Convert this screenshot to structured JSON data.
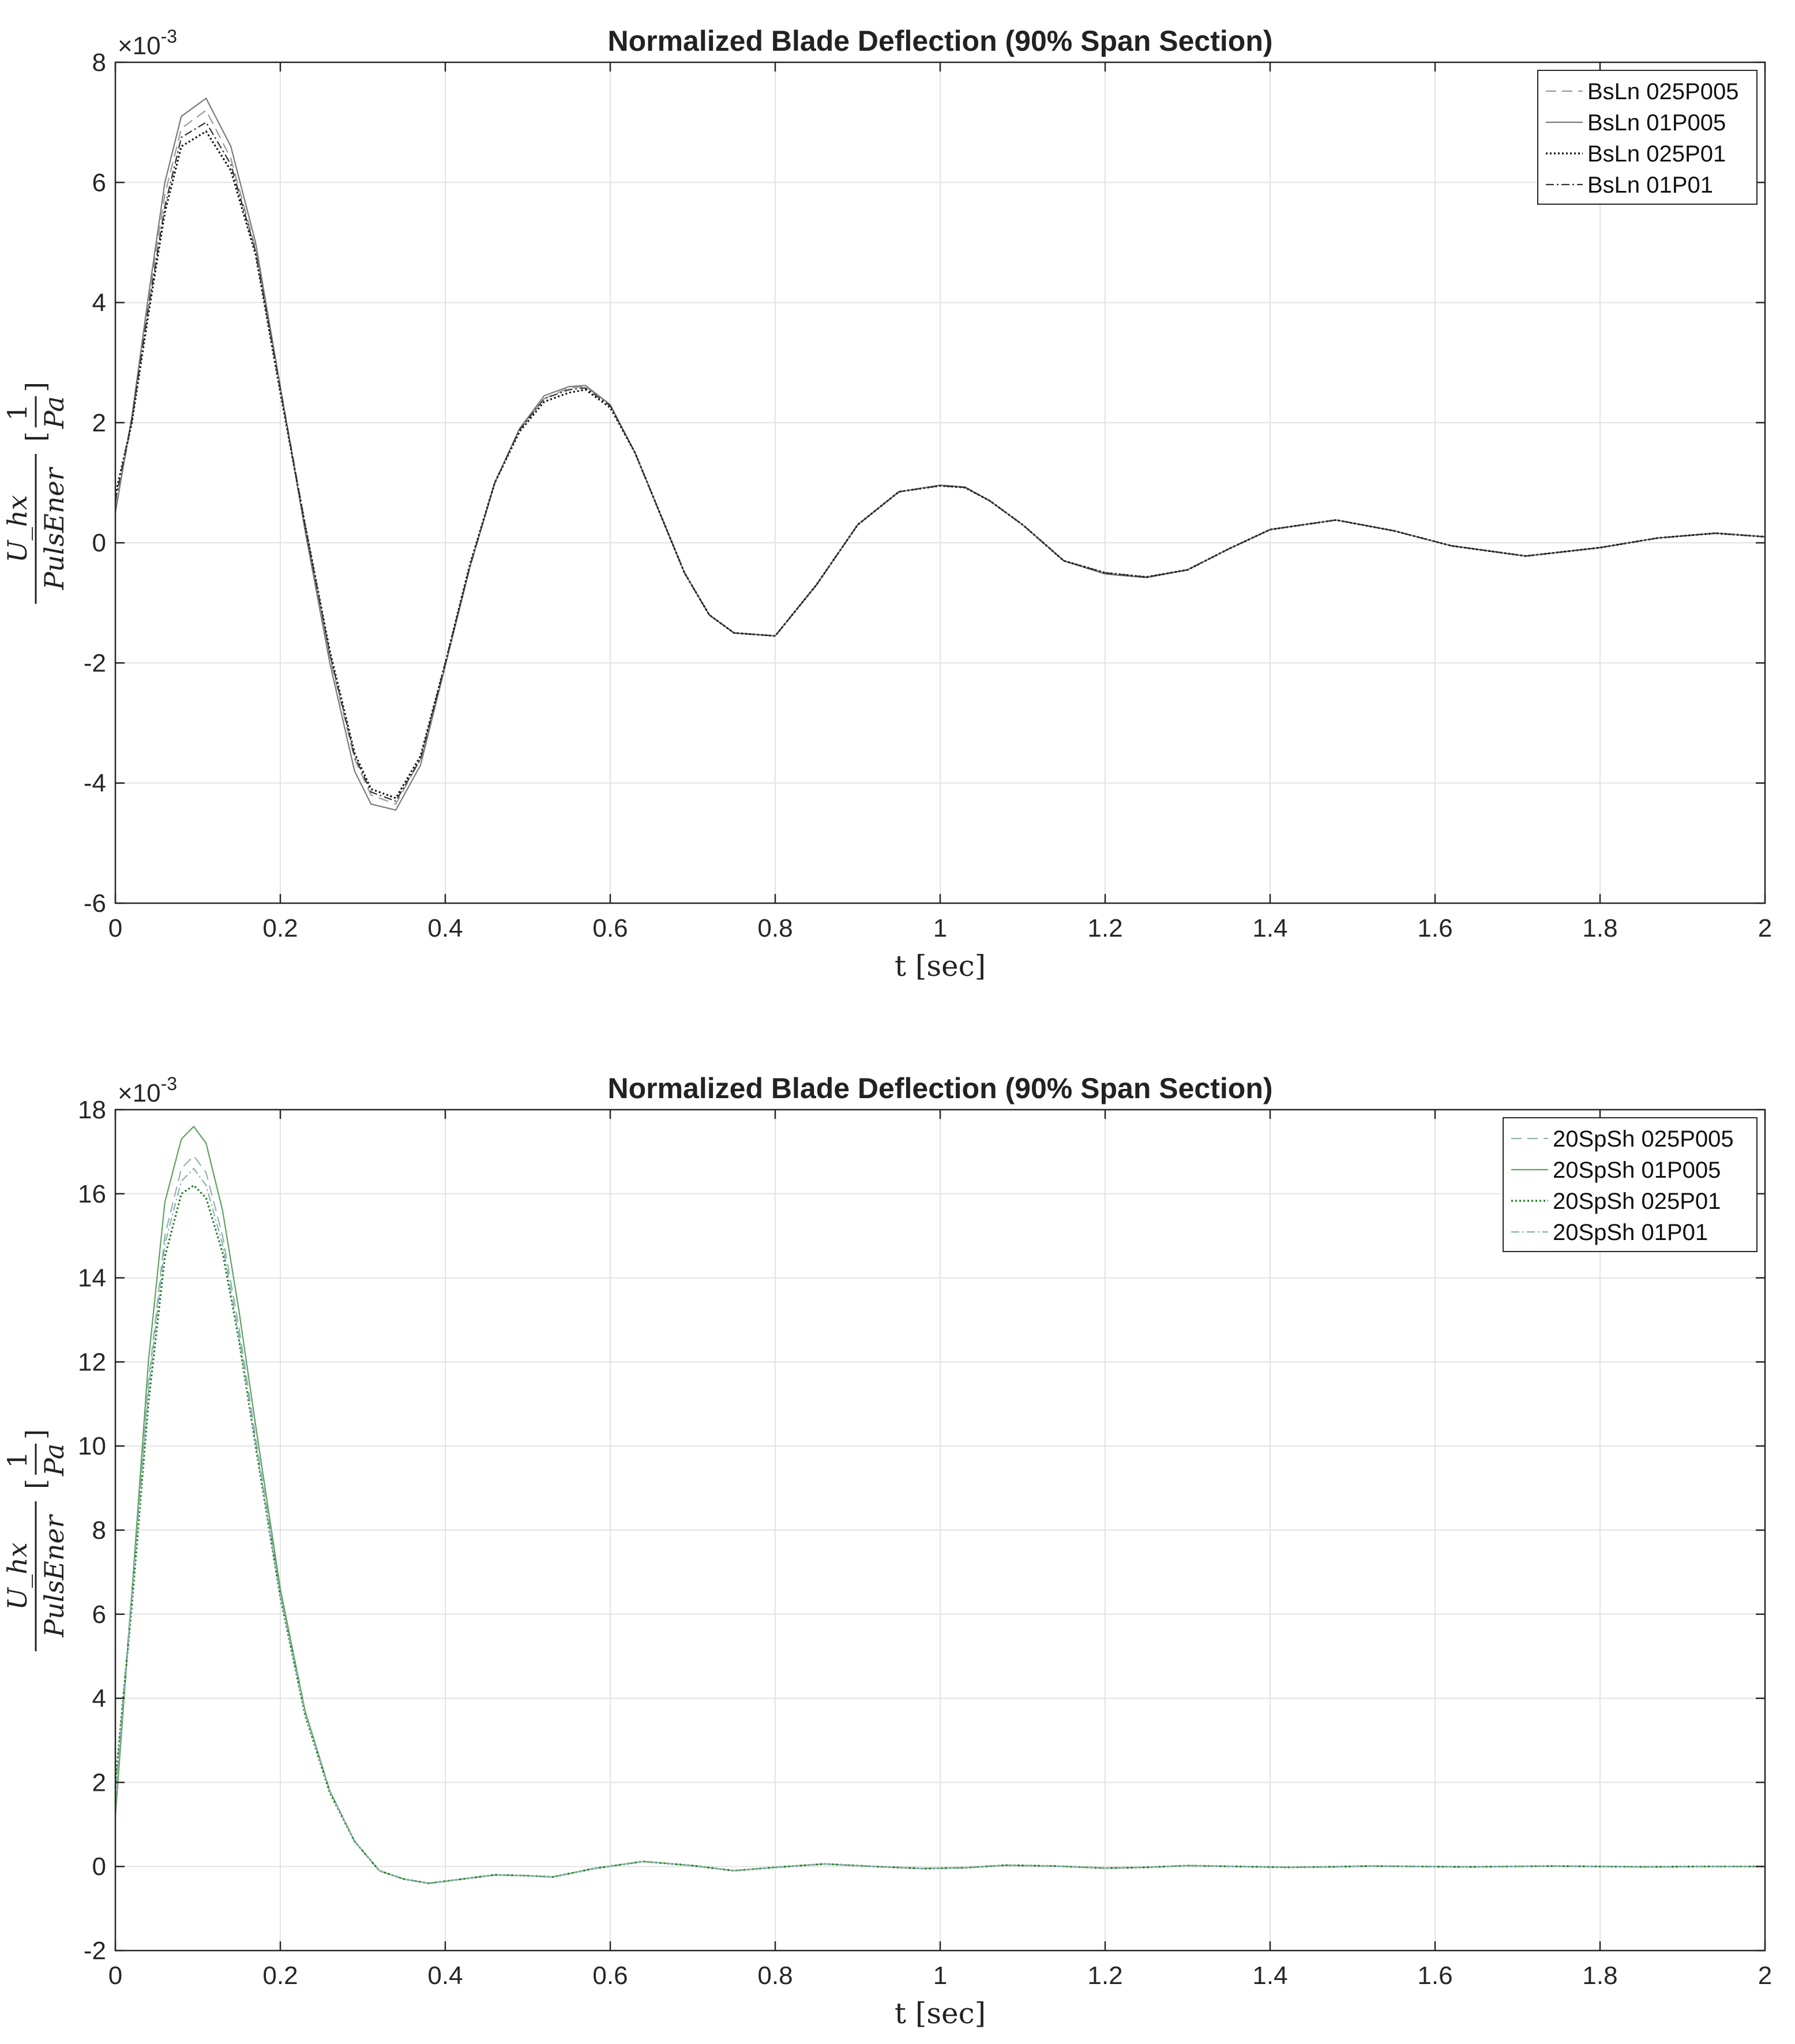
{
  "chart_data": [
    {
      "type": "line",
      "title": "Normalized Blade Deflection (90% Span Section)",
      "xlabel": "t [sec]",
      "ylabel": {
        "numerator": "U_hx",
        "denominator": "PulsEner",
        "unit_numerator": "1",
        "unit_denominator": "Pa"
      },
      "y_exponent_label": "×10",
      "y_exponent": "-3",
      "xlim": [
        0,
        2
      ],
      "ylim": [
        -6,
        8
      ],
      "xticks": [
        0,
        0.2,
        0.4,
        0.6,
        0.8,
        1,
        1.2,
        1.4,
        1.6,
        1.8,
        2
      ],
      "xtick_labels": [
        "0",
        "0.2",
        "0.4",
        "0.6",
        "0.8",
        "1",
        "1.2",
        "1.4",
        "1.6",
        "1.8",
        "2"
      ],
      "yticks": [
        -6,
        -4,
        -2,
        0,
        2,
        4,
        6,
        8
      ],
      "ytick_labels": [
        "-6",
        "-4",
        "-2",
        "0",
        "2",
        "4",
        "6",
        "8"
      ],
      "grid": true,
      "legend_position": "top-right",
      "x": [
        0,
        0.02,
        0.04,
        0.06,
        0.08,
        0.11,
        0.14,
        0.17,
        0.2,
        0.23,
        0.26,
        0.29,
        0.31,
        0.34,
        0.37,
        0.4,
        0.43,
        0.46,
        0.49,
        0.52,
        0.55,
        0.57,
        0.6,
        0.63,
        0.66,
        0.69,
        0.72,
        0.75,
        0.8,
        0.85,
        0.9,
        0.95,
        1.0,
        1.03,
        1.06,
        1.1,
        1.15,
        1.2,
        1.25,
        1.3,
        1.35,
        1.4,
        1.48,
        1.55,
        1.62,
        1.71,
        1.8,
        1.87,
        1.94,
        2.0
      ],
      "series": [
        {
          "name": "BsLn  025P005",
          "color": "#9a9a9a",
          "dash": "18,10",
          "width": 2.2,
          "values": [
            0.6,
            2.0,
            4.0,
            5.8,
            6.9,
            7.2,
            6.4,
            4.9,
            2.6,
            0.3,
            -1.9,
            -3.6,
            -4.2,
            -4.35,
            -3.6,
            -2.0,
            -0.4,
            1.0,
            1.9,
            2.4,
            2.58,
            2.6,
            2.3,
            1.5,
            0.5,
            -0.5,
            -1.2,
            -1.5,
            -1.55,
            -0.7,
            0.3,
            0.85,
            0.95,
            0.92,
            0.7,
            0.3,
            -0.3,
            -0.5,
            -0.57,
            -0.45,
            -0.1,
            0.22,
            0.38,
            0.2,
            -0.05,
            -0.22,
            -0.08,
            0.08,
            0.16,
            0.1
          ]
        },
        {
          "name": "BsLn  01P005",
          "color": "#7a7a7a",
          "dash": "",
          "width": 2.2,
          "values": [
            0.5,
            2.1,
            4.1,
            6.0,
            7.1,
            7.4,
            6.6,
            5.0,
            2.6,
            0.2,
            -2.0,
            -3.8,
            -4.35,
            -4.45,
            -3.7,
            -2.05,
            -0.4,
            1.0,
            1.9,
            2.45,
            2.6,
            2.62,
            2.3,
            1.5,
            0.5,
            -0.5,
            -1.2,
            -1.5,
            -1.55,
            -0.7,
            0.3,
            0.85,
            0.96,
            0.93,
            0.7,
            0.3,
            -0.3,
            -0.52,
            -0.58,
            -0.45,
            -0.1,
            0.22,
            0.38,
            0.2,
            -0.05,
            -0.22,
            -0.08,
            0.08,
            0.16,
            0.1
          ]
        },
        {
          "name": "BsLn  025P01",
          "color": "#111111",
          "dash": "3,4",
          "width": 3.2,
          "values": [
            0.8,
            2.0,
            3.8,
            5.5,
            6.6,
            6.85,
            6.2,
            4.8,
            2.5,
            0.3,
            -1.8,
            -3.5,
            -4.1,
            -4.25,
            -3.55,
            -2.0,
            -0.35,
            1.0,
            1.85,
            2.35,
            2.5,
            2.55,
            2.25,
            1.5,
            0.5,
            -0.5,
            -1.2,
            -1.5,
            -1.55,
            -0.7,
            0.3,
            0.85,
            0.95,
            0.92,
            0.7,
            0.3,
            -0.3,
            -0.5,
            -0.57,
            -0.45,
            -0.1,
            0.22,
            0.38,
            0.2,
            -0.05,
            -0.22,
            -0.08,
            0.08,
            0.16,
            0.1
          ]
        },
        {
          "name": "BsLn  01P01",
          "color": "#333333",
          "dash": "14,5,3,5",
          "width": 2.2,
          "values": [
            0.7,
            2.05,
            3.9,
            5.6,
            6.75,
            7.0,
            6.3,
            4.85,
            2.55,
            0.3,
            -1.85,
            -3.55,
            -4.15,
            -4.3,
            -3.6,
            -2.0,
            -0.38,
            1.0,
            1.88,
            2.4,
            2.55,
            2.58,
            2.28,
            1.5,
            0.5,
            -0.5,
            -1.2,
            -1.5,
            -1.55,
            -0.7,
            0.3,
            0.85,
            0.95,
            0.92,
            0.7,
            0.3,
            -0.3,
            -0.5,
            -0.57,
            -0.45,
            -0.1,
            0.22,
            0.38,
            0.2,
            -0.05,
            -0.22,
            -0.08,
            0.08,
            0.16,
            0.1
          ]
        }
      ]
    },
    {
      "type": "line",
      "title": "Normalized Blade Deflection (90% Span Section)",
      "xlabel": "t [sec]",
      "ylabel": {
        "numerator": "U_hx",
        "denominator": "PulsEner",
        "unit_numerator": "1",
        "unit_denominator": "Pa"
      },
      "y_exponent_label": "×10",
      "y_exponent": "-3",
      "xlim": [
        0,
        2
      ],
      "ylim": [
        -2,
        18
      ],
      "xticks": [
        0,
        0.2,
        0.4,
        0.6,
        0.8,
        1,
        1.2,
        1.4,
        1.6,
        1.8,
        2
      ],
      "xtick_labels": [
        "0",
        "0.2",
        "0.4",
        "0.6",
        "0.8",
        "1",
        "1.2",
        "1.4",
        "1.6",
        "1.8",
        "2"
      ],
      "yticks": [
        -2,
        0,
        2,
        4,
        6,
        8,
        10,
        12,
        14,
        16,
        18
      ],
      "ytick_labels": [
        "-2",
        "0",
        "2",
        "4",
        "6",
        "8",
        "10",
        "12",
        "14",
        "16",
        "18"
      ],
      "grid": true,
      "legend_position": "top-right",
      "x": [
        0,
        0.02,
        0.04,
        0.06,
        0.08,
        0.095,
        0.11,
        0.13,
        0.15,
        0.17,
        0.2,
        0.23,
        0.26,
        0.29,
        0.32,
        0.35,
        0.38,
        0.42,
        0.46,
        0.5,
        0.53,
        0.58,
        0.64,
        0.7,
        0.75,
        0.8,
        0.86,
        0.92,
        0.98,
        1.03,
        1.08,
        1.14,
        1.2,
        1.25,
        1.3,
        1.36,
        1.42,
        1.47,
        1.52,
        1.58,
        1.64,
        1.69,
        1.74,
        1.8,
        1.86,
        1.92,
        2.0
      ],
      "series": [
        {
          "name": "20SpSh  025P005",
          "color": "#8fb3b3",
          "dash": "18,10",
          "width": 2.2,
          "values": [
            1.8,
            6.5,
            11.5,
            15.0,
            16.6,
            16.9,
            16.5,
            15.0,
            12.8,
            10.2,
            6.5,
            3.7,
            1.8,
            0.6,
            -0.1,
            -0.3,
            -0.4,
            -0.3,
            -0.2,
            -0.22,
            -0.25,
            -0.05,
            0.12,
            0.02,
            -0.1,
            -0.02,
            0.06,
            0.0,
            -0.05,
            -0.03,
            0.03,
            0.01,
            -0.04,
            -0.02,
            0.02,
            0.0,
            -0.02,
            -0.01,
            0.01,
            0.0,
            -0.01,
            0.0,
            0.01,
            0.0,
            -0.01,
            0.0,
            0.0
          ]
        },
        {
          "name": "20SpSh  01P005",
          "color": "#5fa35f",
          "dash": "",
          "width": 2.2,
          "values": [
            1.2,
            6.5,
            12.0,
            15.8,
            17.3,
            17.6,
            17.2,
            15.6,
            13.2,
            10.5,
            6.6,
            3.7,
            1.8,
            0.6,
            -0.1,
            -0.3,
            -0.4,
            -0.3,
            -0.2,
            -0.22,
            -0.25,
            -0.05,
            0.12,
            0.02,
            -0.1,
            -0.02,
            0.06,
            0.0,
            -0.05,
            -0.03,
            0.03,
            0.01,
            -0.04,
            -0.02,
            0.02,
            0.0,
            -0.02,
            -0.01,
            0.01,
            0.0,
            -0.01,
            0.0,
            0.01,
            0.0,
            -0.01,
            0.0,
            0.0
          ]
        },
        {
          "name": "20SpSh  025P01",
          "color": "#1f7a1f",
          "dash": "3,4",
          "width": 3.2,
          "values": [
            2.0,
            6.2,
            11.0,
            14.5,
            16.0,
            16.2,
            15.9,
            14.6,
            12.5,
            10.0,
            6.4,
            3.6,
            1.75,
            0.6,
            -0.1,
            -0.3,
            -0.4,
            -0.3,
            -0.2,
            -0.22,
            -0.25,
            -0.05,
            0.12,
            0.02,
            -0.1,
            -0.02,
            0.06,
            0.0,
            -0.05,
            -0.03,
            0.03,
            0.01,
            -0.04,
            -0.02,
            0.02,
            0.0,
            -0.02,
            -0.01,
            0.01,
            0.0,
            -0.01,
            0.0,
            0.01,
            0.0,
            -0.01,
            0.0,
            0.0
          ]
        },
        {
          "name": "20SpSh  01P01",
          "color": "#8ab0b0",
          "dash": "14,5,3,5",
          "width": 2.2,
          "values": [
            1.6,
            6.4,
            11.3,
            14.8,
            16.3,
            16.6,
            16.2,
            14.8,
            12.6,
            10.1,
            6.45,
            3.65,
            1.78,
            0.6,
            -0.1,
            -0.3,
            -0.4,
            -0.3,
            -0.2,
            -0.22,
            -0.25,
            -0.05,
            0.12,
            0.02,
            -0.1,
            -0.02,
            0.06,
            0.0,
            -0.05,
            -0.03,
            0.03,
            0.01,
            -0.04,
            -0.02,
            0.02,
            0.0,
            -0.02,
            -0.01,
            0.01,
            0.0,
            -0.01,
            0.0,
            0.01,
            0.0,
            -0.01,
            0.0,
            0.0
          ]
        }
      ]
    }
  ]
}
